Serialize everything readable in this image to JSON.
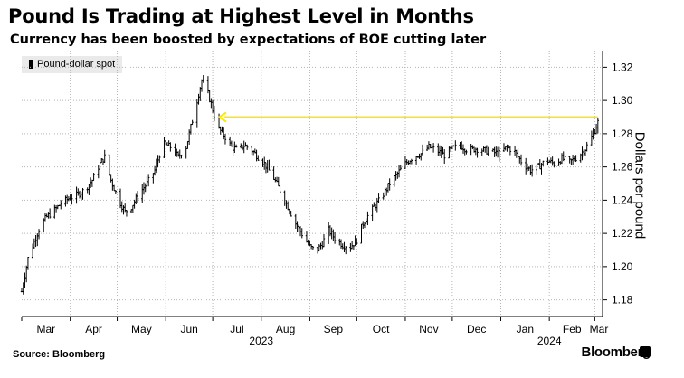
{
  "title": "Pound Is Trading at Highest Level in Months",
  "subtitle": "Currency has been boosted by expectations of BOE cutting later",
  "source": "Source: Bloomberg",
  "brand": "Bloomberg",
  "colors": {
    "series": "#000000",
    "arrow": "#ffe600",
    "grid": "#b5b5b5"
  },
  "chart_data": {
    "type": "candlestick-bar",
    "title": "Pound Is Trading at Highest Level in Months",
    "ylabel": "Dollars per pound",
    "legend": [
      "Pound-dollar spot"
    ],
    "legend_position": "top-left",
    "ylim": [
      1.17,
      1.33
    ],
    "yticks": [
      "1.18",
      "1.20",
      "1.22",
      "1.24",
      "1.26",
      "1.28",
      "1.30",
      "1.32"
    ],
    "grid": true,
    "xlim_days": [
      0,
      371
    ],
    "x_months": [
      "Mar",
      "Apr",
      "May",
      "Jun",
      "Jul",
      "Aug",
      "Sep",
      "Oct",
      "Nov",
      "Dec",
      "Jan",
      "Feb",
      "Mar"
    ],
    "x_month_start_days": [
      0,
      31,
      61,
      92,
      122,
      153,
      184,
      214,
      245,
      275,
      306,
      337,
      366
    ],
    "x_years": [
      {
        "label": "2023",
        "day": 153
      },
      {
        "label": "2024",
        "day": 337
      }
    ],
    "anchors": [
      [
        0,
        1.185
      ],
      [
        4,
        1.205
      ],
      [
        8,
        1.215
      ],
      [
        12,
        1.225
      ],
      [
        16,
        1.23
      ],
      [
        20,
        1.233
      ],
      [
        25,
        1.238
      ],
      [
        30,
        1.241
      ],
      [
        35,
        1.243
      ],
      [
        40,
        1.246
      ],
      [
        45,
        1.252
      ],
      [
        50,
        1.262
      ],
      [
        53,
        1.266
      ],
      [
        57,
        1.252
      ],
      [
        62,
        1.24
      ],
      [
        66,
        1.233
      ],
      [
        70,
        1.236
      ],
      [
        75,
        1.244
      ],
      [
        80,
        1.25
      ],
      [
        85,
        1.258
      ],
      [
        90,
        1.274
      ],
      [
        95,
        1.272
      ],
      [
        100,
        1.266
      ],
      [
        105,
        1.272
      ],
      [
        110,
        1.292
      ],
      [
        115,
        1.312
      ],
      [
        118,
        1.307
      ],
      [
        121,
        1.298
      ],
      [
        125,
        1.284
      ],
      [
        130,
        1.278
      ],
      [
        134,
        1.272
      ],
      [
        138,
        1.27
      ],
      [
        142,
        1.273
      ],
      [
        146,
        1.271
      ],
      [
        150,
        1.267
      ],
      [
        155,
        1.262
      ],
      [
        160,
        1.255
      ],
      [
        165,
        1.246
      ],
      [
        170,
        1.236
      ],
      [
        175,
        1.226
      ],
      [
        180,
        1.218
      ],
      [
        184,
        1.212
      ],
      [
        188,
        1.209
      ],
      [
        192,
        1.214
      ],
      [
        196,
        1.222
      ],
      [
        200,
        1.217
      ],
      [
        205,
        1.213
      ],
      [
        210,
        1.212
      ],
      [
        214,
        1.216
      ],
      [
        218,
        1.226
      ],
      [
        222,
        1.232
      ],
      [
        226,
        1.237
      ],
      [
        230,
        1.242
      ],
      [
        235,
        1.25
      ],
      [
        240,
        1.256
      ],
      [
        245,
        1.262
      ],
      [
        250,
        1.266
      ],
      [
        255,
        1.268
      ],
      [
        260,
        1.272
      ],
      [
        265,
        1.27
      ],
      [
        270,
        1.267
      ],
      [
        275,
        1.271
      ],
      [
        280,
        1.273
      ],
      [
        285,
        1.27
      ],
      [
        290,
        1.271
      ],
      [
        295,
        1.27
      ],
      [
        300,
        1.269
      ],
      [
        305,
        1.268
      ],
      [
        310,
        1.272
      ],
      [
        315,
        1.269
      ],
      [
        320,
        1.262
      ],
      [
        325,
        1.258
      ],
      [
        330,
        1.26
      ],
      [
        335,
        1.264
      ],
      [
        340,
        1.262
      ],
      [
        345,
        1.265
      ],
      [
        350,
        1.263
      ],
      [
        355,
        1.266
      ],
      [
        360,
        1.271
      ],
      [
        363,
        1.276
      ],
      [
        366,
        1.282
      ],
      [
        368,
        1.287
      ]
    ],
    "annotation": {
      "type": "arrow",
      "value": 1.29,
      "from_day": 368,
      "to_day": 126,
      "description": "current level matches July high"
    }
  }
}
